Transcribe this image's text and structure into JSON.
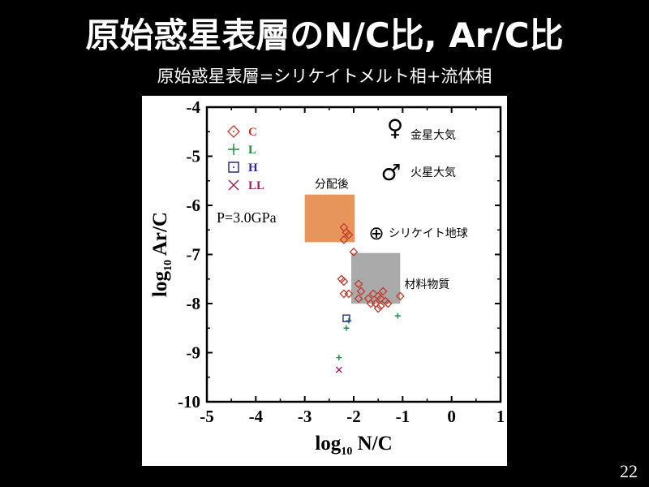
{
  "slide": {
    "title": "原始惑星表層のN/C比, Ar/C比",
    "subtitle": "原始惑星表層=シリケイトメルト相+流体相",
    "page_number": "22"
  },
  "colors": {
    "background": "#000000",
    "C": "#c0392b",
    "L": "#1e8c3a",
    "H": "#2a2a8c",
    "LL": "#a02060",
    "after_partition_box": "#e8955c",
    "material_box": "#aaaaaa"
  },
  "chart_data": {
    "type": "scatter",
    "xlabel": "log10 N/C",
    "ylabel": "log10 Ar/C",
    "xlim": [
      -5,
      1
    ],
    "ylim": [
      -10,
      -4
    ],
    "x_ticks": [
      "-5",
      "-4",
      "-3",
      "-2",
      "-1",
      "0",
      "1"
    ],
    "y_ticks": [
      "-4",
      "-5",
      "-6",
      "-7",
      "-8",
      "-9",
      "-10"
    ],
    "legend": {
      "placement": "top-left",
      "entries": [
        {
          "key": "C",
          "label": "C",
          "marker": "diamond"
        },
        {
          "key": "L",
          "label": "L",
          "marker": "plus"
        },
        {
          "key": "H",
          "label": "H",
          "marker": "square"
        },
        {
          "key": "LL",
          "label": "LL",
          "marker": "cross"
        }
      ]
    },
    "series": [
      {
        "name": "C",
        "marker": "diamond",
        "points": [
          [
            -2.2,
            -6.45
          ],
          [
            -2.15,
            -6.55
          ],
          [
            -2.1,
            -6.6
          ],
          [
            -2.2,
            -6.7
          ],
          [
            -2.0,
            -6.95
          ],
          [
            -2.25,
            -7.5
          ],
          [
            -2.2,
            -7.55
          ],
          [
            -2.2,
            -7.8
          ],
          [
            -2.1,
            -7.8
          ],
          [
            -1.9,
            -7.6
          ],
          [
            -1.85,
            -7.75
          ],
          [
            -1.9,
            -7.9
          ],
          [
            -1.7,
            -7.9
          ],
          [
            -1.6,
            -7.8
          ],
          [
            -1.5,
            -7.85
          ],
          [
            -1.45,
            -7.9
          ],
          [
            -1.4,
            -7.75
          ],
          [
            -1.65,
            -8.0
          ],
          [
            -1.55,
            -8.0
          ],
          [
            -1.45,
            -8.05
          ],
          [
            -1.35,
            -7.95
          ],
          [
            -1.5,
            -8.1
          ],
          [
            -1.3,
            -8.0
          ],
          [
            -1.05,
            -7.85
          ]
        ]
      },
      {
        "name": "L",
        "marker": "plus",
        "points": [
          [
            -2.1,
            -8.35
          ],
          [
            -2.15,
            -8.5
          ],
          [
            -2.3,
            -9.1
          ],
          [
            -1.1,
            -8.25
          ]
        ]
      },
      {
        "name": "H",
        "marker": "square",
        "points": [
          [
            -2.15,
            -8.3
          ]
        ]
      },
      {
        "name": "LL",
        "marker": "cross",
        "points": [
          [
            -2.3,
            -9.35
          ]
        ]
      }
    ],
    "regions": [
      {
        "key": "after_partition",
        "label": "分配後",
        "x": [
          -3.0,
          -1.98
        ],
        "y": [
          -6.75,
          -5.78
        ]
      },
      {
        "key": "material",
        "label": "材料物質",
        "x": [
          -2.05,
          -1.05
        ],
        "y": [
          -8.0,
          -6.97
        ]
      }
    ],
    "annotations": {
      "pressure": "P=3.0GPa",
      "venus_symbol": "♀",
      "venus_label": "金星大気",
      "mars_symbol": "♂",
      "mars_label": "火星大気",
      "earth_symbol": "⊕",
      "earth_label": "シリケイト地球"
    }
  }
}
